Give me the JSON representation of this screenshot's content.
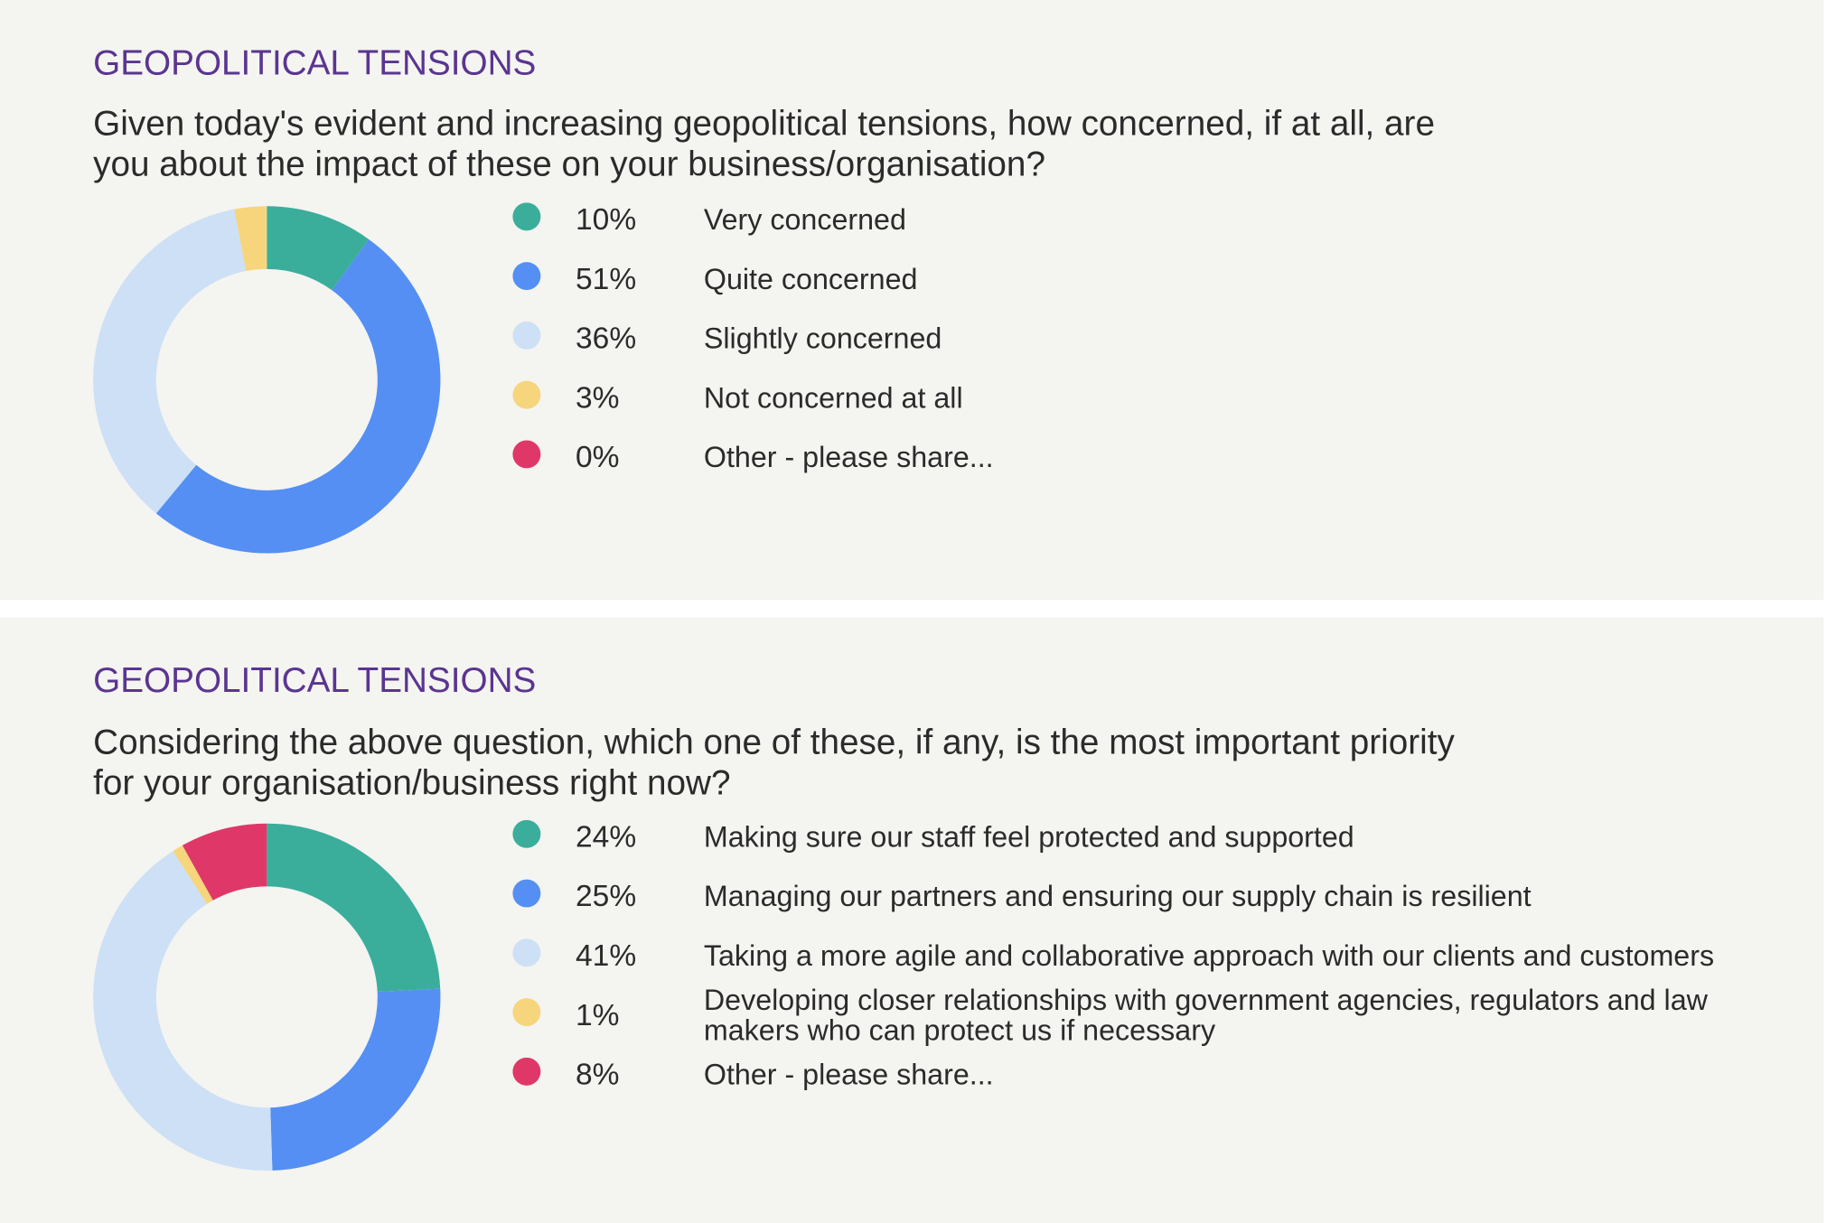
{
  "chart_data": [
    {
      "type": "donut",
      "title": "GEOPOLITICAL TENSIONS",
      "subtitle": "Given today's evident and increasing geopolitical tensions, how concerned, if at all, are you about the impact of these on your business/organisation?",
      "categories": [
        "Very concerned",
        "Quite concerned",
        "Slightly concerned",
        "Not concerned at all",
        "Other - please share..."
      ],
      "values": [
        10,
        51,
        36,
        3,
        0
      ],
      "value_labels": [
        "10%",
        "51%",
        "36%",
        "3%",
        "0%"
      ],
      "colors": [
        "#3aae9b",
        "#558ff3",
        "#cde0f5",
        "#f6d57c",
        "#df3868"
      ]
    },
    {
      "type": "donut",
      "title": "GEOPOLITICAL TENSIONS",
      "subtitle": "Considering the above question, which one of these, if any, is the most important priority for your organisation/business right now?",
      "categories": [
        "Making sure our staff feel protected and supported",
        "Managing our partners and ensuring our supply chain is resilient",
        "Taking a more agile and collaborative approach with our clients and customers",
        "Developing closer relationships with government agencies, regulators and law makers who can protect us if necessary",
        "Other - please share..."
      ],
      "values": [
        24,
        25,
        41,
        1,
        8
      ],
      "value_labels": [
        "24%",
        "25%",
        "41%",
        "1%",
        "8%"
      ],
      "colors": [
        "#3aae9b",
        "#558ff3",
        "#cde0f5",
        "#f6d57c",
        "#df3868"
      ]
    }
  ]
}
